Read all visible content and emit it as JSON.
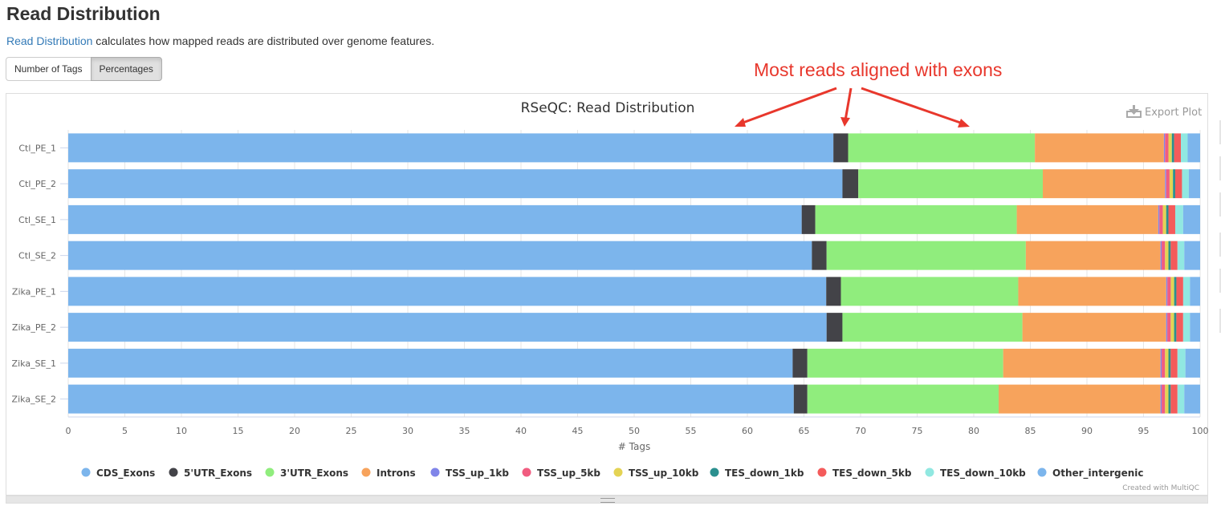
{
  "page": {
    "title": "Read Distribution",
    "intro_link": "Read Distribution",
    "intro_text": " calculates how mapped reads are distributed over genome features."
  },
  "toggle": {
    "buttons": [
      "Number of Tags",
      "Percentages"
    ],
    "active": "Percentages"
  },
  "annotation": "Most reads aligned with exons",
  "export_label": "Export Plot",
  "footer": "Created with MultiQC",
  "colors": {
    "annotation": "#e8372c",
    "link": "#337ab7"
  },
  "chart_data": {
    "type": "bar",
    "orientation": "horizontal",
    "stacked": true,
    "title": "RSeQC: Read Distribution",
    "xlabel": "# Tags",
    "ylabel": "",
    "xlim": [
      0,
      100
    ],
    "xticks": [
      0,
      5,
      10,
      15,
      20,
      25,
      30,
      35,
      40,
      45,
      50,
      55,
      60,
      65,
      70,
      75,
      80,
      85,
      90,
      95,
      100
    ],
    "grid": true,
    "legend": "bottom",
    "categories": [
      "Ctl_PE_1",
      "Ctl_PE_2",
      "Ctl_SE_1",
      "Ctl_SE_2",
      "Zika_PE_1",
      "Zika_PE_2",
      "Zika_SE_1",
      "Zika_SE_2"
    ],
    "series": [
      {
        "name": "CDS_Exons",
        "color": "#7cb5ec",
        "values": [
          67.6,
          68.4,
          64.8,
          65.7,
          67.1,
          67.0,
          64.0,
          64.1
        ]
      },
      {
        "name": "5'UTR_Exons",
        "color": "#434348",
        "values": [
          1.3,
          1.4,
          1.2,
          1.3,
          1.3,
          1.4,
          1.3,
          1.2
        ]
      },
      {
        "name": "3'UTR_Exons",
        "color": "#90ed7d",
        "values": [
          16.5,
          16.3,
          17.8,
          17.6,
          15.7,
          15.9,
          17.3,
          16.9
        ]
      },
      {
        "name": "Introns",
        "color": "#f7a35c",
        "values": [
          11.4,
          10.8,
          12.5,
          11.9,
          13.1,
          12.7,
          13.9,
          14.3
        ]
      },
      {
        "name": "TSS_up_1kb",
        "color": "#8085e9",
        "values": [
          0.1,
          0.1,
          0.1,
          0.1,
          0.1,
          0.1,
          0.1,
          0.1
        ]
      },
      {
        "name": "TSS_up_5kb",
        "color": "#f15c80",
        "values": [
          0.3,
          0.3,
          0.3,
          0.3,
          0.3,
          0.3,
          0.3,
          0.3
        ]
      },
      {
        "name": "TSS_up_10kb",
        "color": "#e4d354",
        "values": [
          0.3,
          0.3,
          0.3,
          0.3,
          0.3,
          0.3,
          0.3,
          0.3
        ]
      },
      {
        "name": "TES_down_1kb",
        "color": "#2b908f",
        "values": [
          0.2,
          0.2,
          0.2,
          0.2,
          0.2,
          0.2,
          0.2,
          0.2
        ]
      },
      {
        "name": "TES_down_5kb",
        "color": "#f45b5b",
        "values": [
          0.6,
          0.6,
          0.6,
          0.6,
          0.6,
          0.6,
          0.6,
          0.6
        ]
      },
      {
        "name": "TES_down_10kb",
        "color": "#91e8e1",
        "values": [
          0.6,
          0.6,
          0.7,
          0.6,
          0.6,
          0.6,
          0.7,
          0.6
        ]
      },
      {
        "name": "Other_intergenic",
        "color": "#7cb5ec",
        "values": [
          1.1,
          1.0,
          1.5,
          1.4,
          0.9,
          0.9,
          1.3,
          1.4
        ]
      }
    ]
  }
}
